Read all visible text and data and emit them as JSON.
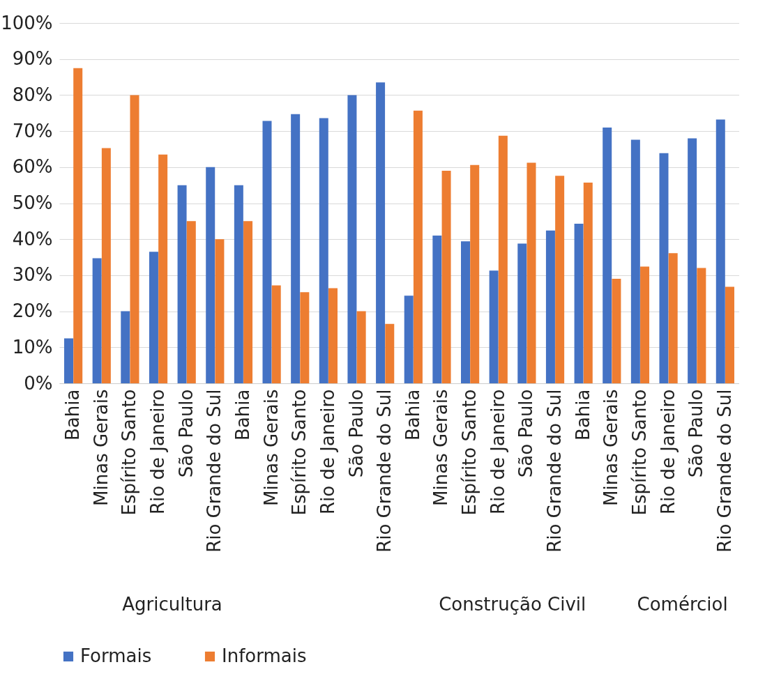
{
  "chart_data": {
    "type": "bar",
    "categories": [
      "Bahia",
      "Minas Gerais",
      "Espírito Santo",
      "Rio de Janeiro",
      "São Paulo",
      "Rio Grande do Sul",
      "Bahia",
      "Minas Gerais",
      "Espírito Santo",
      "Rio de Janeiro",
      "São Paulo",
      "Rio Grande do Sul",
      "Bahia",
      "Minas Gerais",
      "Espírito Santo",
      "Rio de Janeiro",
      "São Paulo",
      "Rio Grande do Sul",
      "Bahia",
      "Minas Gerais",
      "Espírito Santo",
      "Rio de Janeiro",
      "São Paulo",
      "Rio Grande do Sul"
    ],
    "series": [
      {
        "name": "Formais",
        "color": "#4472c4",
        "values": [
          12.5,
          34.7,
          20,
          36.5,
          55,
          60,
          55,
          72.8,
          74.7,
          73.6,
          80,
          83.5,
          24.3,
          41,
          39.4,
          31.3,
          38.8,
          42.4,
          44.3,
          71,
          67.6,
          63.9,
          68,
          73.2
        ]
      },
      {
        "name": "Informais",
        "color": "#ed7d31",
        "values": [
          87.5,
          65.3,
          80,
          63.5,
          45,
          40,
          45,
          27.2,
          25.3,
          26.4,
          20,
          16.5,
          75.7,
          59,
          60.6,
          68.7,
          61.2,
          57.6,
          55.7,
          29,
          32.4,
          36.1,
          32,
          26.8
        ]
      }
    ],
    "annotations": [
      "Agricultura",
      "Construção Civil",
      "Comérciol"
    ],
    "ylim": [
      0,
      100
    ],
    "yticks": [
      {
        "value": 0,
        "label": "0%"
      },
      {
        "value": 10,
        "label": "10%"
      },
      {
        "value": 20,
        "label": "20%"
      },
      {
        "value": 30,
        "label": "30%"
      },
      {
        "value": 40,
        "label": "40%"
      },
      {
        "value": 50,
        "label": "50%"
      },
      {
        "value": 60,
        "label": "60%"
      },
      {
        "value": 70,
        "label": "70%"
      },
      {
        "value": 80,
        "label": "80%"
      },
      {
        "value": 90,
        "label": "90%"
      },
      {
        "value": 100,
        "label": "100%"
      }
    ],
    "grid": "y",
    "legend": "bottom"
  }
}
